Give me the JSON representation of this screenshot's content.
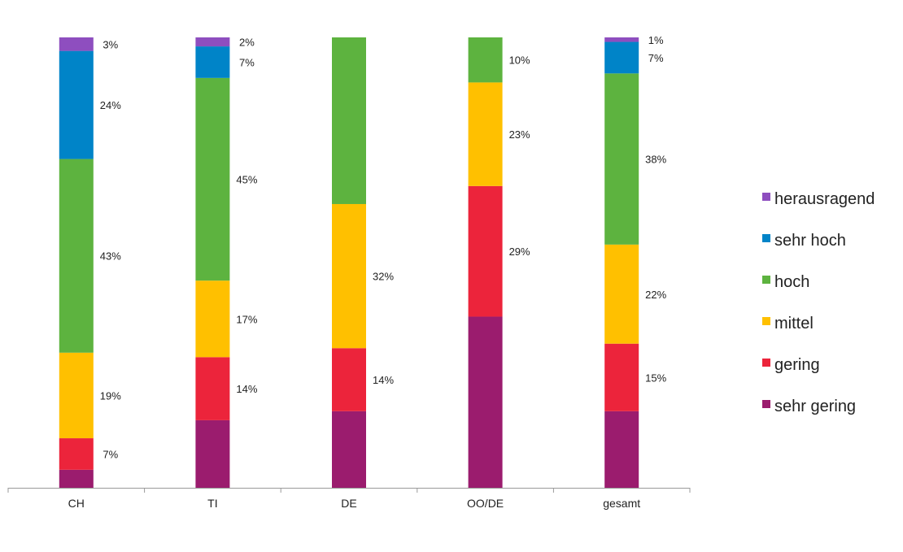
{
  "chart_data": {
    "type": "bar",
    "stacked": true,
    "categories": [
      "CH",
      "TI",
      "DE",
      "OO/DE",
      "gesamt"
    ],
    "ylim": [
      0,
      100
    ],
    "title": "",
    "xlabel": "",
    "ylabel": "",
    "grid": false,
    "legend_position": "right",
    "series": [
      {
        "name": "sehr gering",
        "color": "#9B1C6E",
        "values": [
          4,
          15,
          17,
          38,
          17
        ],
        "labels": [
          "",
          "",
          "",
          "",
          ""
        ]
      },
      {
        "name": "gering",
        "color": "#EC243B",
        "values": [
          7,
          14,
          14,
          29,
          15
        ],
        "labels": [
          "7%",
          "14%",
          "14%",
          "29%",
          "15%"
        ]
      },
      {
        "name": "mittel",
        "color": "#FFC000",
        "values": [
          19,
          17,
          32,
          23,
          22
        ],
        "labels": [
          "19%",
          "17%",
          "32%",
          "23%",
          "22%"
        ]
      },
      {
        "name": "hoch",
        "color": "#5DB33F",
        "values": [
          43,
          45,
          37,
          10,
          38
        ],
        "labels": [
          "43%",
          "45%",
          "",
          "10%",
          "38%"
        ]
      },
      {
        "name": "sehr hoch",
        "color": "#0084C8",
        "values": [
          24,
          7,
          0,
          0,
          7
        ],
        "labels": [
          "24%",
          "7%",
          "",
          "",
          "7%"
        ]
      },
      {
        "name": "herausragend",
        "color": "#8E4EBF",
        "values": [
          3,
          2,
          0,
          0,
          1
        ],
        "labels": [
          "3%",
          "2%",
          "",
          "",
          "1%"
        ]
      }
    ],
    "legend_order": [
      "herausragend",
      "sehr hoch",
      "hoch",
      "mittel",
      "gering",
      "sehr gering"
    ]
  }
}
